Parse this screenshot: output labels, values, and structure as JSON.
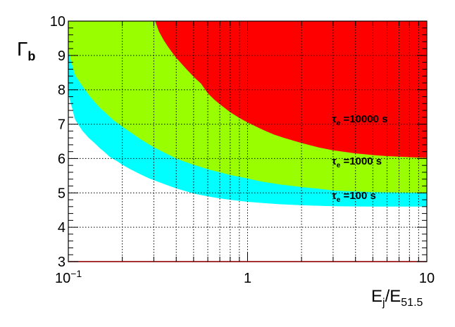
{
  "chart_data": {
    "type": "area",
    "x_scale": "log",
    "xlim": [
      0.1,
      10
    ],
    "ylim": [
      3,
      10
    ],
    "grid": true,
    "xlabel": {
      "main": "E",
      "sub1": "j",
      "sep": "/E",
      "sub2": "51.5"
    },
    "ylabel": {
      "main": "Γ",
      "sub": "b"
    },
    "x_ticks": [
      {
        "value": 0.1,
        "base": "10",
        "exp": "−1"
      },
      {
        "value": 1,
        "text": "1"
      },
      {
        "value": 10,
        "text": "10"
      }
    ],
    "y_ticks": [
      "3",
      "4",
      "5",
      "6",
      "7",
      "8",
      "9",
      "10"
    ],
    "colors": {
      "tau_10000": "#ff0000",
      "tau_1000": "#99ff00",
      "tau_100": "#00ffff",
      "frame": "#000000",
      "grid": "#000000"
    },
    "regions": [
      {
        "key": "tau_100",
        "label_base": "τ",
        "label_sub": "e",
        "label_value": " =100 s",
        "label_at": [
          2.95,
          4.82
        ],
        "boundary": [
          [
            0.1,
            7.9
          ],
          [
            0.102,
            7.7
          ],
          [
            0.104,
            7.55
          ],
          [
            0.106,
            7.4
          ],
          [
            0.108,
            7.2
          ],
          [
            0.11,
            7.1
          ],
          [
            0.115,
            6.95
          ],
          [
            0.12,
            6.8
          ],
          [
            0.125,
            6.7
          ],
          [
            0.13,
            6.6
          ],
          [
            0.14,
            6.45
          ],
          [
            0.15,
            6.3
          ],
          [
            0.16,
            6.18
          ],
          [
            0.17,
            6.05
          ],
          [
            0.18,
            5.97
          ],
          [
            0.19,
            5.9
          ],
          [
            0.2,
            5.82
          ],
          [
            0.22,
            5.7
          ],
          [
            0.25,
            5.55
          ],
          [
            0.28,
            5.43
          ],
          [
            0.3,
            5.37
          ],
          [
            0.35,
            5.24
          ],
          [
            0.4,
            5.13
          ],
          [
            0.45,
            5.05
          ],
          [
            0.5,
            4.98
          ],
          [
            0.6,
            4.9
          ],
          [
            0.7,
            4.84
          ],
          [
            0.8,
            4.8
          ],
          [
            1.0,
            4.74
          ],
          [
            1.5,
            4.67
          ],
          [
            2.0,
            4.64
          ],
          [
            3.0,
            4.61
          ],
          [
            5.0,
            4.6
          ],
          [
            10,
            4.6
          ]
        ]
      },
      {
        "key": "tau_1000",
        "label_base": "τ",
        "label_sub": "e",
        "label_value": " =1000 s",
        "label_at": [
          2.95,
          5.82
        ],
        "boundary": [
          [
            0.1,
            9.2
          ],
          [
            0.102,
            8.95
          ],
          [
            0.104,
            8.8
          ],
          [
            0.106,
            8.65
          ],
          [
            0.108,
            8.5
          ],
          [
            0.11,
            8.4
          ],
          [
            0.115,
            8.25
          ],
          [
            0.12,
            8.1
          ],
          [
            0.125,
            7.98
          ],
          [
            0.13,
            7.85
          ],
          [
            0.14,
            7.65
          ],
          [
            0.15,
            7.48
          ],
          [
            0.16,
            7.35
          ],
          [
            0.17,
            7.22
          ],
          [
            0.18,
            7.1
          ],
          [
            0.2,
            6.93
          ],
          [
            0.22,
            6.78
          ],
          [
            0.25,
            6.58
          ],
          [
            0.28,
            6.42
          ],
          [
            0.3,
            6.33
          ],
          [
            0.35,
            6.15
          ],
          [
            0.4,
            6.0
          ],
          [
            0.45,
            5.9
          ],
          [
            0.5,
            5.82
          ],
          [
            0.6,
            5.69
          ],
          [
            0.7,
            5.6
          ],
          [
            0.8,
            5.52
          ],
          [
            1.0,
            5.42
          ],
          [
            1.2,
            5.33
          ],
          [
            1.5,
            5.25
          ],
          [
            2.0,
            5.17
          ],
          [
            2.5,
            5.12
          ],
          [
            3.0,
            5.07
          ],
          [
            4.0,
            5.04
          ],
          [
            5.0,
            5.02
          ],
          [
            10,
            5.0
          ]
        ]
      },
      {
        "key": "tau_10000",
        "label_base": "τ",
        "label_sub": "e",
        "label_value": " =10000 s",
        "label_at": [
          2.95,
          7.05
        ],
        "boundary": [
          [
            0.305,
            10.0
          ],
          [
            0.32,
            9.7
          ],
          [
            0.34,
            9.45
          ],
          [
            0.36,
            9.25
          ],
          [
            0.38,
            9.08
          ],
          [
            0.4,
            8.93
          ],
          [
            0.43,
            8.75
          ],
          [
            0.46,
            8.58
          ],
          [
            0.5,
            8.38
          ],
          [
            0.55,
            8.18
          ],
          [
            0.6,
            7.9
          ],
          [
            0.65,
            7.72
          ],
          [
            0.7,
            7.58
          ],
          [
            0.8,
            7.35
          ],
          [
            0.9,
            7.18
          ],
          [
            1.0,
            7.05
          ],
          [
            1.2,
            6.85
          ],
          [
            1.4,
            6.7
          ],
          [
            1.6,
            6.6
          ],
          [
            2.0,
            6.45
          ],
          [
            2.5,
            6.32
          ],
          [
            3.0,
            6.24
          ],
          [
            4.0,
            6.15
          ],
          [
            5.0,
            6.1
          ],
          [
            6.0,
            6.07
          ],
          [
            8.0,
            6.04
          ],
          [
            10,
            6.02
          ]
        ]
      }
    ]
  }
}
